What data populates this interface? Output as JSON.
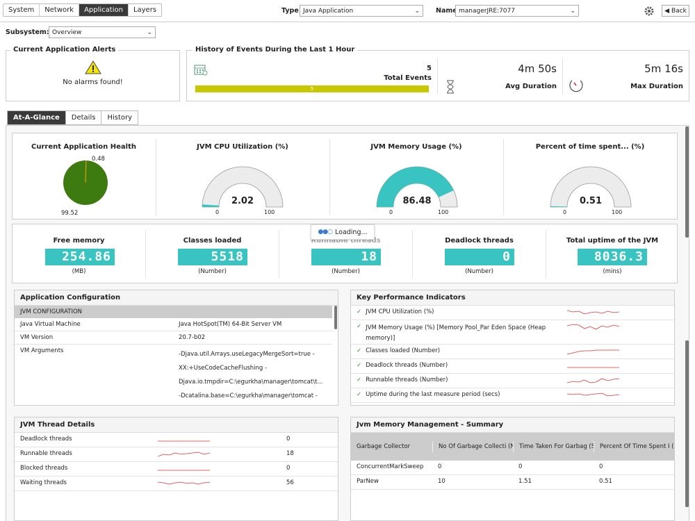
{
  "nav": {
    "tabs": [
      "System",
      "Network",
      "Application",
      "Layers"
    ],
    "active": "Application"
  },
  "filters": {
    "type_label": "Type",
    "type_value": "Java Application",
    "name_label": "Name",
    "name_value": "managerJRE:7077",
    "back_label": "Back"
  },
  "subsystem": {
    "label": "Subsystem:",
    "value": "Overview"
  },
  "alerts": {
    "title": "Current Application Alerts",
    "message": "No alarms found!"
  },
  "history": {
    "title": "History of Events During the Last 1 Hour",
    "total_events": "5",
    "total_events_label": "Total Events",
    "bar_value": "5",
    "avg_duration": "4m 50s",
    "avg_label": "Avg Duration",
    "max_duration": "5m 16s",
    "max_label": "Max Duration"
  },
  "content_tabs": [
    "At-A-Glance",
    "Details",
    "History"
  ],
  "gauges": {
    "health": {
      "title": "Current Application Health",
      "bad": "0.48",
      "good": "99.52"
    },
    "cpu": {
      "title": "JVM CPU Utilization (%)",
      "value": "2.02",
      "min": "0",
      "max": "100",
      "fraction": 0.0202
    },
    "mem": {
      "title": "JVM Memory Usage (%)",
      "value": "86.48",
      "min": "0",
      "max": "100",
      "fraction": 0.8648
    },
    "gc": {
      "title": "Percent of time spent... (%)",
      "value": "0.51",
      "min": "0",
      "max": "100",
      "fraction": 0.0051
    }
  },
  "metrics": [
    {
      "title": "Free memory",
      "value": "254.86",
      "unit": "(MB)"
    },
    {
      "title": "Classes loaded",
      "value": "5518",
      "unit": "(Number)"
    },
    {
      "title": "Runnable threads",
      "value": "18",
      "unit": "(Number)"
    },
    {
      "title": "Deadlock threads",
      "value": "0",
      "unit": "(Number)"
    },
    {
      "title": "Total uptime of the JVM",
      "value": "8036.3",
      "unit": "(mins)"
    }
  ],
  "loading": "Loading...",
  "app_config": {
    "title": "Application Configuration",
    "section": "JVM CONFIGURATION",
    "rows": [
      {
        "k": "Java Virtual Machine",
        "v": "Java HotSpot(TM) 64-Bit Server VM"
      },
      {
        "k": "VM Version",
        "v": "20.7-b02"
      },
      {
        "k": "VM Arguments",
        "v": "-Djava.util.Arrays.useLegacyMergeSort=true - XX:+UseCodeCacheFlushing - Djava.io.tmpdir=C:\\egurkha\\manager\\tomcat\\t... -Dcatalina.base=C:\\egurkha\\manager\\tomcat - Dcatalina.home=C:\\egurkha\\manager\\tomcat -"
      }
    ]
  },
  "kpi": {
    "title": "Key Performance Indicators",
    "items": [
      "JVM CPU Utilization (%)",
      "JVM Memory Usage (%) [Memory Pool_Par Eden Space (Heap memory)]",
      "Classes loaded (Number)",
      "Deadlock threads (Number)",
      "Runnable threads (Number)",
      "Uptime during the last measure period (secs)"
    ]
  },
  "threads": {
    "title": "JVM Thread Details",
    "rows": [
      {
        "k": "Deadlock threads",
        "v": "0"
      },
      {
        "k": "Runnable threads",
        "v": "18"
      },
      {
        "k": "Blocked threads",
        "v": "0"
      },
      {
        "k": "Waiting threads",
        "v": "56"
      }
    ]
  },
  "memmgmt": {
    "title": "Jvm Memory Management - Summary",
    "headers": [
      "Garbage Collector",
      "No Of Garbage Collecti (Number)",
      "Time Taken For Garbag (Secs)",
      "Percent Of Time Spent I (%)"
    ],
    "rows": [
      [
        "ConcurrentMarkSweep",
        "0",
        "0",
        "0"
      ],
      [
        "ParNew",
        "10",
        "1.51",
        "0.51"
      ]
    ]
  },
  "colors": {
    "accent": "#39c4c2",
    "health_green": "#3d7a0f",
    "bar": "#c8c800",
    "dark_tab": "#3a3a3a"
  }
}
